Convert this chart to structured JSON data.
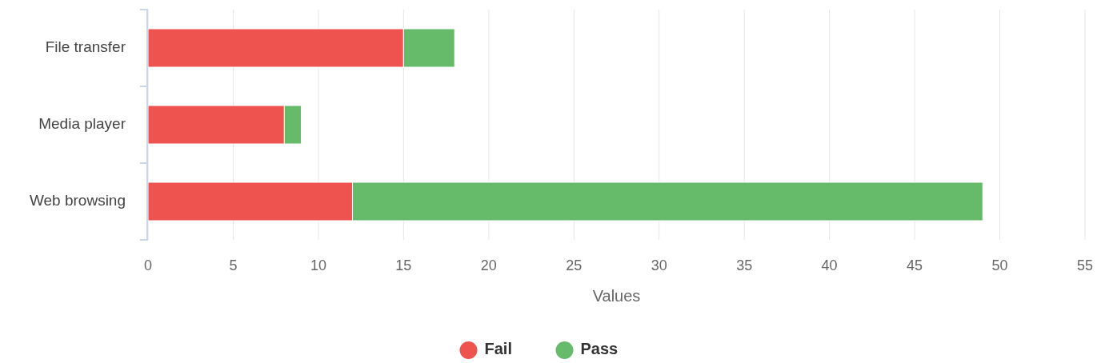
{
  "chart_data": {
    "type": "bar",
    "orientation": "horizontal",
    "stacked": true,
    "xlabel": "Values",
    "categories": [
      "File transfer",
      "Media player",
      "Web browsing"
    ],
    "series": [
      {
        "name": "Fail",
        "color": "#ef5350",
        "values": [
          15,
          8,
          12
        ]
      },
      {
        "name": "Pass",
        "color": "#66bb6a",
        "values": [
          3,
          1,
          37
        ]
      }
    ],
    "xlim": [
      0,
      55
    ],
    "xticks": [
      0,
      5,
      10,
      15,
      20,
      25,
      30,
      35,
      40,
      45,
      50,
      55
    ],
    "grid": "x",
    "legend": "bottom"
  }
}
